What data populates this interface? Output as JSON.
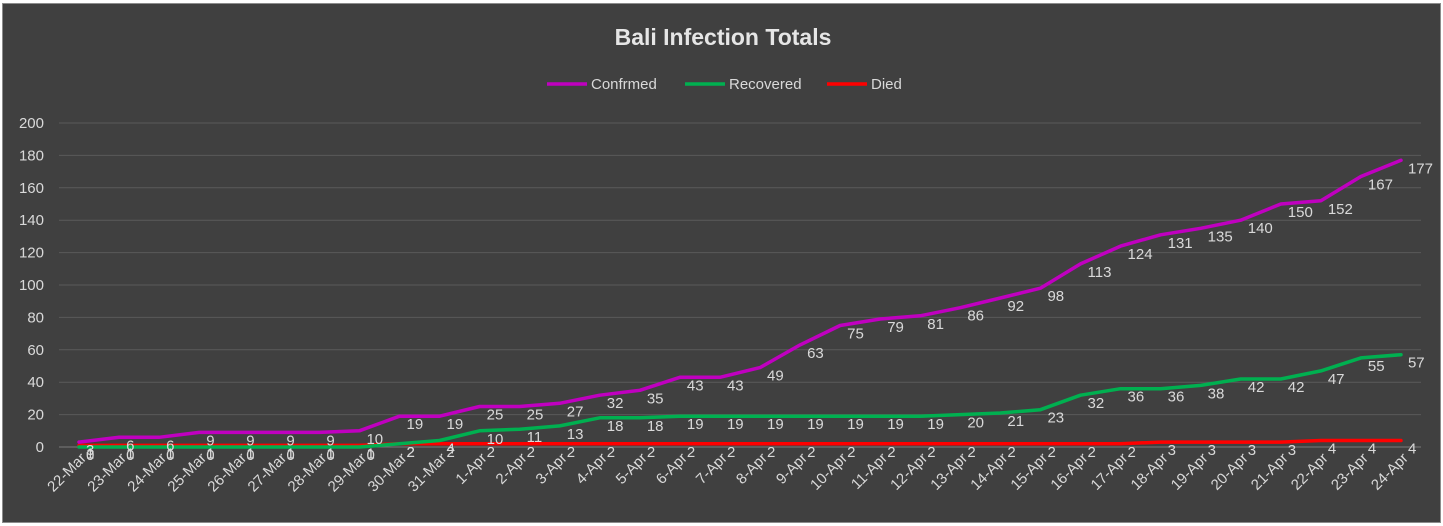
{
  "chart_data": {
    "type": "line",
    "title": "Bali Infection Totals",
    "categories": [
      "22-Mar",
      "23-Mar",
      "24-Mar",
      "25-Mar",
      "26-Mar",
      "27-Mar",
      "28-Mar",
      "29-Mar",
      "30-Mar",
      "31-Mar",
      "1-Apr",
      "2-Apr",
      "3-Apr",
      "4-Apr",
      "5-Apr",
      "6-Apr",
      "7-Apr",
      "8-Apr",
      "9-Apr",
      "10-Apr",
      "11-Apr",
      "12-Apr",
      "13-Apr",
      "14-Apr",
      "15-Apr",
      "16-Apr",
      "17-Apr",
      "18-Apr",
      "19-Apr",
      "20-Apr",
      "21-Apr",
      "22-Apr",
      "23-Apr",
      "24-Apr"
    ],
    "series": [
      {
        "name": "Confrmed",
        "color": "#c000c0",
        "values": [
          3,
          6,
          6,
          9,
          9,
          9,
          9,
          10,
          19,
          19,
          25,
          25,
          27,
          32,
          35,
          43,
          43,
          49,
          63,
          75,
          79,
          81,
          86,
          92,
          98,
          113,
          124,
          131,
          135,
          140,
          150,
          152,
          167,
          177
        ]
      },
      {
        "name": "Recovered",
        "color": "#00b050",
        "values": [
          0,
          0,
          0,
          0,
          0,
          0,
          0,
          0,
          2,
          4,
          10,
          11,
          13,
          18,
          18,
          19,
          19,
          19,
          19,
          19,
          19,
          19,
          20,
          21,
          23,
          32,
          36,
          36,
          38,
          42,
          42,
          47,
          55,
          57
        ]
      },
      {
        "name": "Died",
        "color": "#ff0000",
        "values": [
          1,
          1,
          1,
          1,
          1,
          1,
          1,
          1,
          2,
          2,
          2,
          2,
          2,
          2,
          2,
          2,
          2,
          2,
          2,
          2,
          2,
          2,
          2,
          2,
          2,
          2,
          2,
          3,
          3,
          3,
          3,
          4,
          4,
          4
        ]
      }
    ],
    "ylim": [
      0,
      200
    ],
    "yticks": [
      0,
      20,
      40,
      60,
      80,
      100,
      120,
      140,
      160,
      180,
      200
    ],
    "grid": true,
    "legend": "top",
    "colors": {
      "background": "#404040",
      "grid": "#5a5a5a",
      "text": "#d9d9d9"
    }
  }
}
